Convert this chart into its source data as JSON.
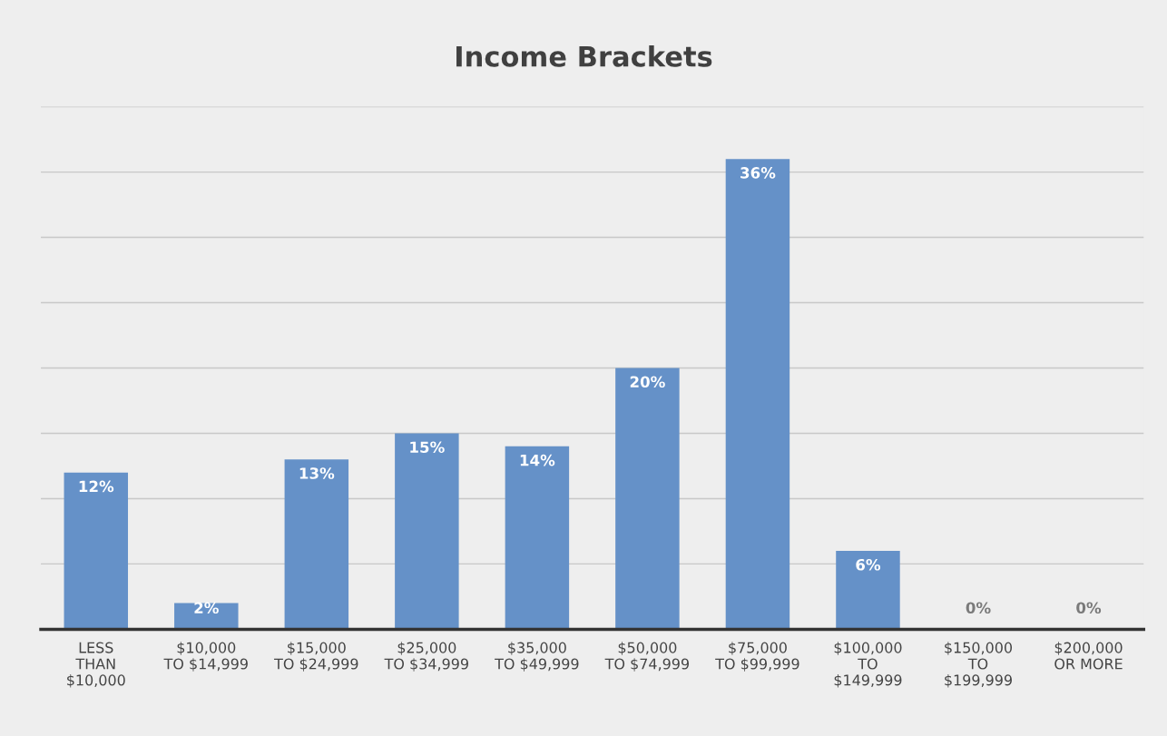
{
  "chart_data": {
    "type": "bar",
    "title": "Income Brackets",
    "categories": [
      "LESS\nTHAN\n$10,000",
      "$10,000\nTO $14,999",
      "$15,000\nTO $24,999",
      "$25,000\nTO $34,999",
      "$35,000\nTO $49,999",
      "$50,000\nTO $74,999",
      "$75,000\nTO $99,999",
      "$100,000\nTO\n$149,999",
      "$150,000\nTO\n$199,999",
      "$200,000\nOR MORE"
    ],
    "values": [
      12,
      2,
      13,
      15,
      14,
      20,
      36,
      6,
      0,
      0
    ],
    "value_labels": [
      "12%",
      "2%",
      "13%",
      "15%",
      "14%",
      "20%",
      "36%",
      "6%",
      "0%",
      "0%"
    ],
    "color": "#6591c8",
    "ylim": [
      0,
      40
    ],
    "yticks": [
      {
        "value": 0,
        "label": null
      },
      {
        "value": 5,
        "label": null
      },
      {
        "value": 10,
        "label": null
      },
      {
        "value": 15,
        "label": null
      },
      {
        "value": 20,
        "label": null
      },
      {
        "value": 25,
        "label": null
      },
      {
        "value": 30,
        "label": null
      },
      {
        "value": 35,
        "label": null
      },
      {
        "value": 40,
        "label": null
      }
    ],
    "tick_labels": "x",
    "grid": "y",
    "legend": false
  }
}
